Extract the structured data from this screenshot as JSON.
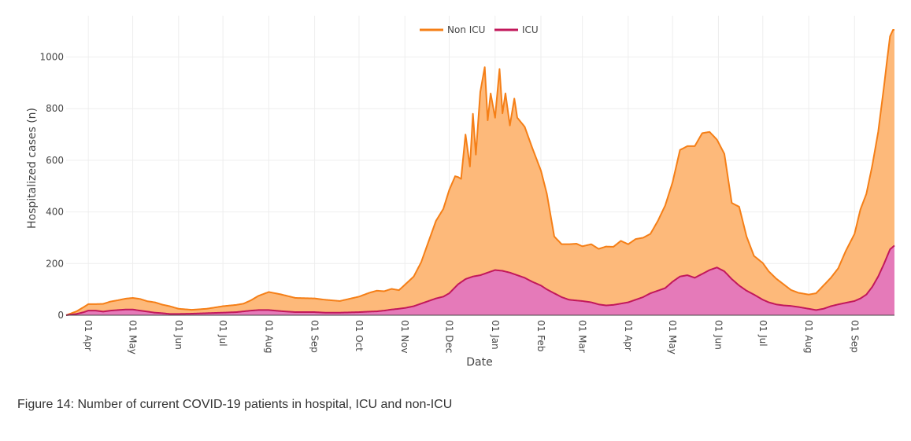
{
  "caption": "Figure 14: Number of current COVID-19 patients in hospital, ICU and non-ICU",
  "chart_data": {
    "type": "area",
    "stacked": true,
    "title": "",
    "xlabel": "Date",
    "ylabel": "Hospitalized cases (n)",
    "ylim": [
      0,
      1160
    ],
    "yticks": [
      0,
      200,
      400,
      600,
      800,
      1000
    ],
    "x_range_days": [
      -15,
      545
    ],
    "x_ticks": [
      {
        "day": 0,
        "label": "01 Apr"
      },
      {
        "day": 30,
        "label": "01 May"
      },
      {
        "day": 61,
        "label": "01 Jun"
      },
      {
        "day": 91,
        "label": "01 Jul"
      },
      {
        "day": 122,
        "label": "01 Aug"
      },
      {
        "day": 153,
        "label": "01 Sep"
      },
      {
        "day": 183,
        "label": "01 Oct"
      },
      {
        "day": 214,
        "label": "01 Nov"
      },
      {
        "day": 244,
        "label": "01 Dec"
      },
      {
        "day": 275,
        "label": "01 Jan"
      },
      {
        "day": 306,
        "label": "01 Feb"
      },
      {
        "day": 334,
        "label": "01 Mar"
      },
      {
        "day": 365,
        "label": "01 Apr"
      },
      {
        "day": 395,
        "label": "01 May"
      },
      {
        "day": 426,
        "label": "01 Jun"
      },
      {
        "day": 456,
        "label": "01 Jul"
      },
      {
        "day": 487,
        "label": "01 Aug"
      },
      {
        "day": 518,
        "label": "01 Sep"
      }
    ],
    "legend": {
      "position": "top-center",
      "entries": [
        "Non ICU",
        "ICU"
      ]
    },
    "colors": {
      "non_icu_line": "#f57f17",
      "non_icu_fill": "#fdb97a",
      "icu_line": "#c2185b",
      "icu_fill": "#e57ab9",
      "grid": "#eeeeee",
      "zero_line": "#444444"
    },
    "series": [
      {
        "name": "ICU",
        "days": [
          -15,
          -8,
          -3,
          0,
          5,
          10,
          15,
          20,
          25,
          30,
          35,
          40,
          45,
          50,
          55,
          61,
          70,
          80,
          91,
          100,
          110,
          115,
          122,
          130,
          140,
          153,
          160,
          170,
          183,
          190,
          195,
          200,
          205,
          210,
          214,
          220,
          225,
          230,
          235,
          240,
          244,
          250,
          255,
          260,
          265,
          270,
          275,
          280,
          285,
          290,
          295,
          300,
          306,
          310,
          315,
          320,
          325,
          330,
          334,
          340,
          345,
          350,
          355,
          360,
          365,
          370,
          375,
          380,
          385,
          390,
          395,
          400,
          405,
          410,
          415,
          420,
          425,
          430,
          435,
          440,
          445,
          450,
          456,
          460,
          465,
          470,
          475,
          480,
          487,
          492,
          497,
          502,
          507,
          512,
          518,
          522,
          526,
          530,
          534,
          538,
          542,
          545
        ],
        "values": [
          0,
          5,
          12,
          18,
          18,
          14,
          18,
          20,
          22,
          22,
          18,
          14,
          10,
          8,
          5,
          5,
          6,
          8,
          10,
          12,
          18,
          20,
          20,
          16,
          12,
          12,
          10,
          10,
          12,
          14,
          15,
          18,
          22,
          25,
          28,
          35,
          45,
          55,
          65,
          72,
          85,
          120,
          140,
          150,
          155,
          165,
          175,
          172,
          165,
          155,
          145,
          130,
          115,
          100,
          85,
          70,
          60,
          57,
          55,
          50,
          42,
          38,
          40,
          45,
          50,
          60,
          70,
          85,
          95,
          105,
          130,
          150,
          155,
          145,
          160,
          175,
          185,
          170,
          140,
          115,
          95,
          80,
          60,
          50,
          42,
          38,
          36,
          32,
          25,
          20,
          25,
          35,
          42,
          48,
          55,
          65,
          80,
          110,
          150,
          200,
          255,
          270
        ]
      },
      {
        "name": "Non ICU",
        "days": [
          -15,
          -8,
          -3,
          0,
          5,
          10,
          15,
          20,
          25,
          30,
          35,
          40,
          45,
          50,
          55,
          61,
          70,
          80,
          91,
          100,
          105,
          110,
          115,
          122,
          130,
          140,
          153,
          160,
          170,
          183,
          190,
          195,
          200,
          205,
          210,
          214,
          220,
          225,
          230,
          235,
          240,
          244,
          248,
          252,
          255,
          258,
          260,
          262,
          265,
          268,
          270,
          272,
          275,
          278,
          280,
          282,
          285,
          288,
          290,
          295,
          300,
          306,
          310,
          315,
          320,
          325,
          330,
          334,
          340,
          345,
          350,
          355,
          360,
          365,
          370,
          375,
          380,
          385,
          390,
          395,
          400,
          405,
          410,
          415,
          420,
          425,
          430,
          435,
          440,
          445,
          450,
          456,
          460,
          465,
          470,
          475,
          480,
          487,
          492,
          497,
          502,
          507,
          512,
          518,
          522,
          526,
          530,
          534,
          538,
          540,
          542,
          544,
          545
        ],
        "values": [
          0,
          10,
          20,
          25,
          25,
          30,
          35,
          38,
          42,
          45,
          45,
          40,
          40,
          33,
          30,
          20,
          15,
          17,
          25,
          28,
          30,
          40,
          55,
          70,
          65,
          55,
          53,
          50,
          45,
          60,
          73,
          80,
          75,
          80,
          72,
          90,
          115,
          160,
          230,
          300,
          340,
          400,
          430,
          400,
          560,
          430,
          630,
          470,
          710,
          800,
          590,
          690,
          590,
          780,
          610,
          690,
          570,
          680,
          610,
          585,
          520,
          445,
          370,
          220,
          205,
          215,
          220,
          212,
          225,
          215,
          228,
          225,
          243,
          225,
          235,
          230,
          230,
          270,
          320,
          385,
          490,
          500,
          510,
          545,
          535,
          495,
          455,
          295,
          305,
          210,
          150,
          142,
          120,
          100,
          82,
          62,
          55,
          55,
          65,
          90,
          110,
          140,
          200,
          260,
          345,
          390,
          470,
          560,
          690,
          760,
          825,
          840,
          835
        ]
      }
    ]
  }
}
